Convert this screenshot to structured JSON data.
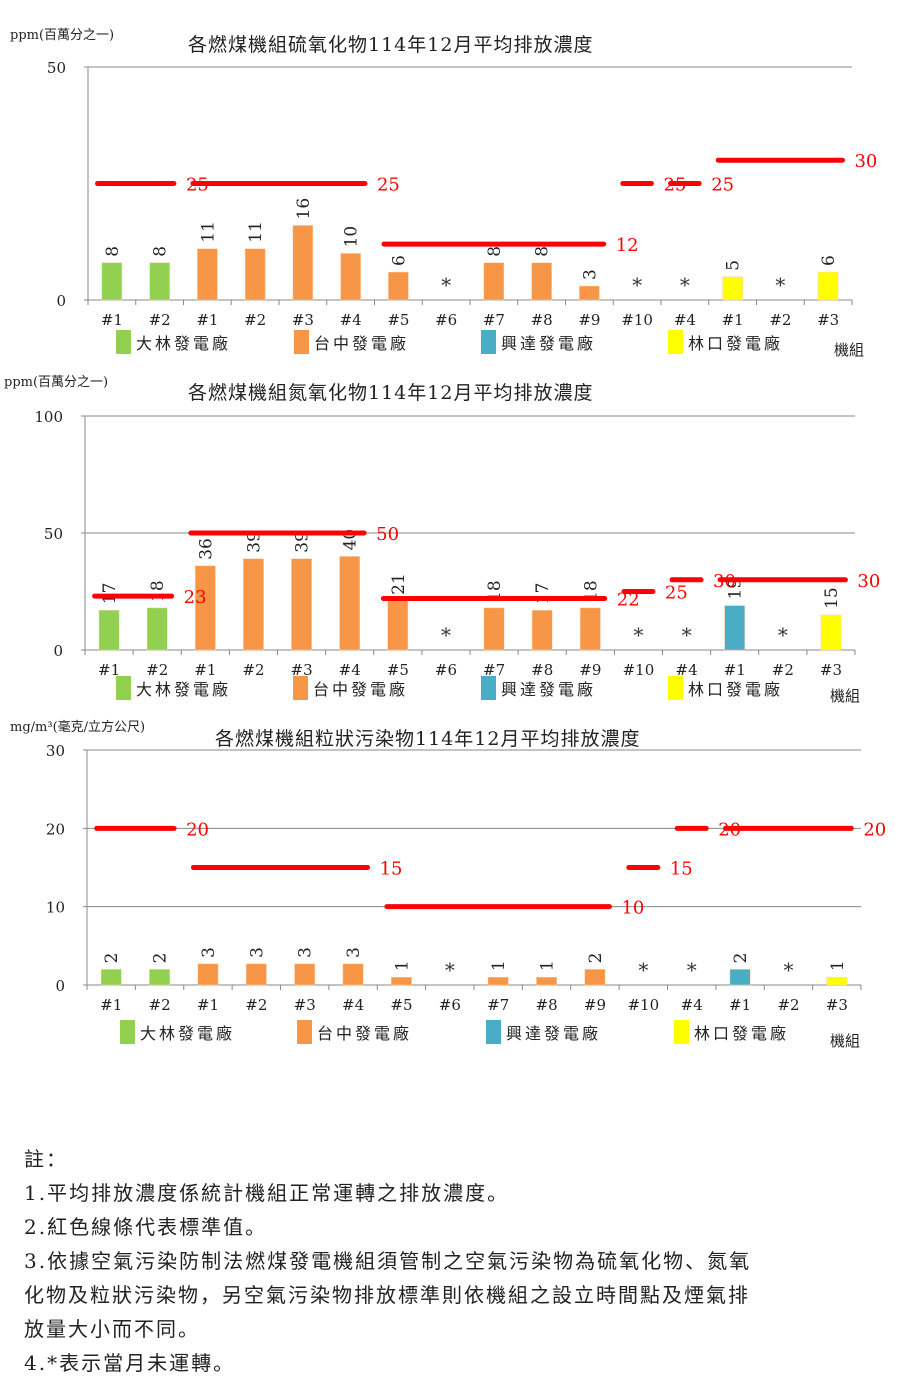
{
  "colors": {
    "dalin": "#92d050",
    "taichung": "#f79646",
    "hsinta": "#4bacc6",
    "linkou": "#ffff00",
    "standard": "#ff0000",
    "grid": "#888888",
    "label": "#1f3864"
  },
  "legend": [
    {
      "key": "dalin",
      "label": "大林發電廠"
    },
    {
      "key": "taichung",
      "label": "台中發電廠"
    },
    {
      "key": "hsinta",
      "label": "興達發電廠"
    },
    {
      "key": "linkou",
      "label": "林口發電廠"
    }
  ],
  "x_unit_label": "機組",
  "chart_data": [
    {
      "type": "bar",
      "title": "各燃煤機組硫氧化物114年12月平均排放濃度",
      "ylabel": "ppm(百萬分之一)",
      "xlabel": "機組",
      "ylim": [
        0,
        50
      ],
      "yticks": [
        0,
        50
      ],
      "categories": [
        "#1",
        "#2",
        "#1",
        "#2",
        "#3",
        "#4",
        "#5",
        "#6",
        "#7",
        "#8",
        "#9",
        "#10",
        "#4",
        "#1",
        "#2",
        "#3"
      ],
      "plants": [
        "dalin",
        "dalin",
        "taichung",
        "taichung",
        "taichung",
        "taichung",
        "taichung",
        "taichung",
        "taichung",
        "taichung",
        "taichung",
        "taichung",
        "hsinta",
        "linkou",
        "linkou",
        "linkou"
      ],
      "values": [
        8,
        8,
        11,
        11,
        16,
        10,
        6,
        null,
        8,
        8,
        3,
        null,
        null,
        5,
        null,
        6
      ],
      "value_labels": [
        "8",
        "8",
        "11",
        "11",
        "16",
        "10",
        "6",
        "*",
        "8",
        "8",
        "3",
        "*",
        "*",
        "5",
        "*",
        "6"
      ],
      "standards": [
        {
          "from": 0,
          "to": 1,
          "value": 25,
          "label": "25"
        },
        {
          "from": 2,
          "to": 5,
          "value": 25,
          "label": "25"
        },
        {
          "from": 6,
          "to": 10,
          "value": 12,
          "label": "12"
        },
        {
          "from": 11,
          "to": 11,
          "value": 25,
          "label": "25"
        },
        {
          "from": 12,
          "to": 12,
          "value": 25,
          "label": "25"
        },
        {
          "from": 13,
          "to": 15,
          "value": 30,
          "label": "30"
        }
      ]
    },
    {
      "type": "bar",
      "title": "各燃煤機組氮氧化物114年12月平均排放濃度",
      "ylabel": "ppm(百萬分之一)",
      "xlabel": "機組",
      "ylim": [
        0,
        100
      ],
      "yticks": [
        0,
        50,
        100
      ],
      "categories": [
        "#1",
        "#2",
        "#1",
        "#2",
        "#3",
        "#4",
        "#5",
        "#6",
        "#7",
        "#8",
        "#9",
        "#10",
        "#4",
        "#1",
        "#2",
        "#3"
      ],
      "plants": [
        "dalin",
        "dalin",
        "taichung",
        "taichung",
        "taichung",
        "taichung",
        "taichung",
        "taichung",
        "taichung",
        "taichung",
        "taichung",
        "taichung",
        "hsinta",
        "hsinta",
        "linkou",
        "linkou"
      ],
      "values": [
        17,
        18,
        36,
        39,
        39,
        40,
        21,
        null,
        18,
        17,
        18,
        null,
        null,
        19,
        null,
        15
      ],
      "value_labels": [
        "17",
        "18",
        "36",
        "39",
        "39",
        "40",
        "21",
        "*",
        "18",
        "17",
        "18",
        "*",
        "*",
        "19",
        "*",
        "15"
      ],
      "standards": [
        {
          "from": 0,
          "to": 1,
          "value": 23,
          "label": "23"
        },
        {
          "from": 2,
          "to": 5,
          "value": 50,
          "label": "50"
        },
        {
          "from": 6,
          "to": 10,
          "value": 22,
          "label": "22"
        },
        {
          "from": 11,
          "to": 11,
          "value": 25,
          "label": "25"
        },
        {
          "from": 12,
          "to": 12,
          "value": 30,
          "label": "30"
        },
        {
          "from": 13,
          "to": 15,
          "value": 30,
          "label": "30"
        }
      ]
    },
    {
      "type": "bar",
      "title": "各燃煤機組粒狀污染物114年12月平均排放濃度",
      "ylabel": "mg/m³(毫克/立方公尺)",
      "xlabel": "機組",
      "ylim": [
        0,
        30
      ],
      "yticks": [
        0,
        10,
        20,
        30
      ],
      "categories": [
        "#1",
        "#2",
        "#1",
        "#2",
        "#3",
        "#4",
        "#5",
        "#6",
        "#7",
        "#8",
        "#9",
        "#10",
        "#4",
        "#1",
        "#2",
        "#3"
      ],
      "plants": [
        "dalin",
        "dalin",
        "taichung",
        "taichung",
        "taichung",
        "taichung",
        "taichung",
        "taichung",
        "taichung",
        "taichung",
        "taichung",
        "taichung",
        "hsinta",
        "hsinta",
        "linkou",
        "linkou"
      ],
      "values": [
        2,
        2,
        2.7,
        2.7,
        2.7,
        2.7,
        1,
        null,
        1,
        1,
        2,
        null,
        null,
        2,
        null,
        1
      ],
      "value_labels": [
        "2",
        "2",
        "3",
        "3",
        "3",
        "3",
        "1",
        "*",
        "1",
        "1",
        "2",
        "*",
        "*",
        "2",
        "*",
        "1"
      ],
      "standards": [
        {
          "from": 0,
          "to": 1,
          "value": 20,
          "label": "20"
        },
        {
          "from": 2,
          "to": 5,
          "value": 15,
          "label": "15"
        },
        {
          "from": 6,
          "to": 10,
          "value": 10,
          "label": "10"
        },
        {
          "from": 11,
          "to": 11,
          "value": 15,
          "label": "15"
        },
        {
          "from": 12,
          "to": 12,
          "value": 20,
          "label": "20"
        },
        {
          "from": 13,
          "to": 15,
          "value": 20,
          "label": "20"
        }
      ]
    }
  ],
  "notes": {
    "heading": "註：",
    "lines": [
      "1.平均排放濃度係統計機組正常運轉之排放濃度。",
      "2.紅色線條代表標準值。",
      "3.依據空氣污染防制法燃煤發電機組須管制之空氣污染物為硫氧化物、氮氧",
      "化物及粒狀污染物，另空氣污染物排放標準則依機組之設立時間點及煙氣排",
      "放量大小而不同。",
      "4.*表示當月未運轉。"
    ]
  }
}
